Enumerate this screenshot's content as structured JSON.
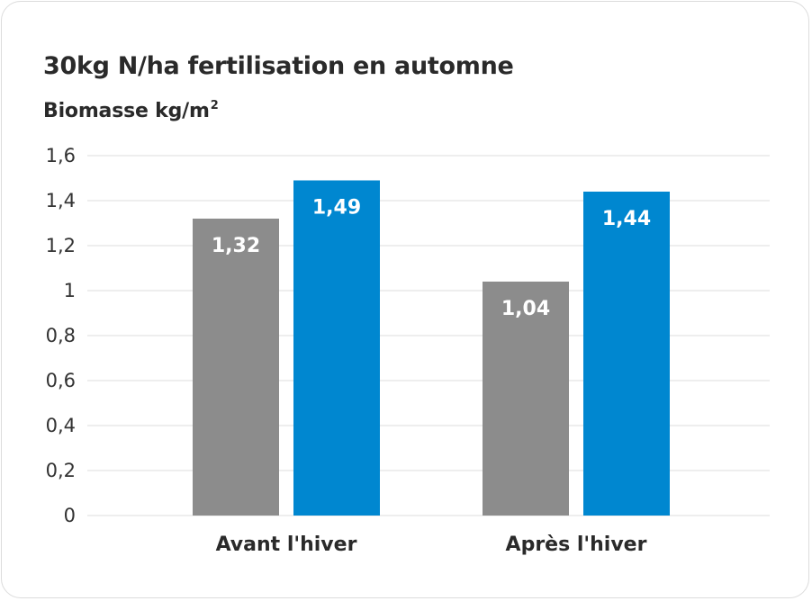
{
  "chart_data": {
    "type": "bar",
    "title": "30kg N/ha fertilisation en automne",
    "ylabel_text": "Biomasse kg/m",
    "ylabel_superscript": "2",
    "xlabel": "",
    "categories": [
      "Avant l'hiver",
      "Après l'hiver"
    ],
    "series": [
      {
        "values": [
          1.32,
          1.04
        ],
        "value_labels": [
          "1,32",
          "1,04"
        ],
        "color": "#8c8c8c"
      },
      {
        "values": [
          1.49,
          1.44
        ],
        "value_labels": [
          "1,49",
          "1,44"
        ],
        "color": "#0087d0"
      }
    ],
    "ylim": [
      0,
      1.6
    ],
    "yticks": [
      0,
      0.2,
      0.4,
      0.6,
      0.8,
      1,
      1.2,
      1.4,
      1.6
    ],
    "ytick_labels": [
      "0",
      "0,2",
      "0,4",
      "0,6",
      "0,8",
      "1",
      "1,2",
      "1,4",
      "1,6"
    ],
    "grid": true,
    "legend": "none",
    "gridline_color": "#dddddd"
  }
}
